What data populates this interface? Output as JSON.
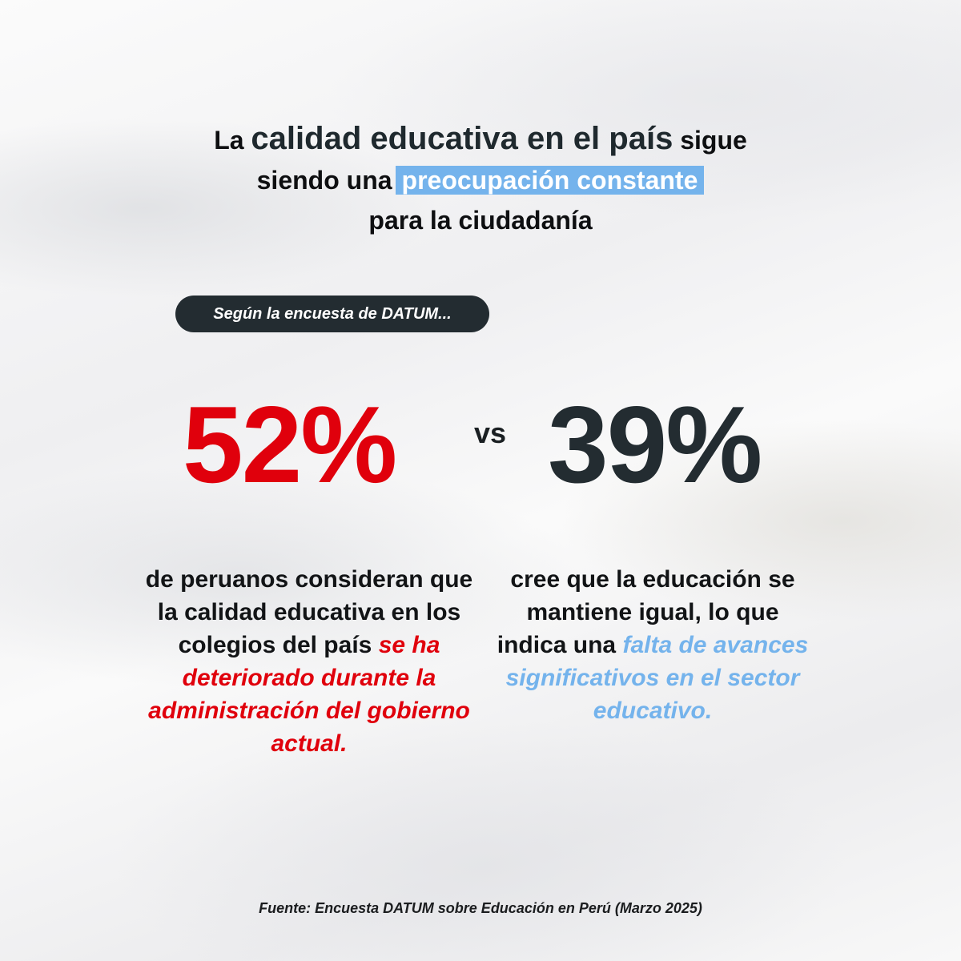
{
  "headline": {
    "part1": "La",
    "part2": "calidad educativa en el país",
    "part3": "sigue",
    "part4": "siendo una",
    "highlight": "preocupación constante",
    "part5": "para la ciudadanía"
  },
  "intro_pill": "Según la encuesta de DATUM...",
  "stat_left": {
    "value": "52%",
    "text1": "de peruanos consideran que la calidad educativa en los colegios del país",
    "emphasis": "se ha deteriorado durante la administración del gobierno actual."
  },
  "versus": "vs",
  "stat_right": {
    "value": "39%",
    "text1": "cree que la educación se mantiene igual, lo que indica una",
    "emphasis": "falta de avances significativos en el sector educativo",
    "text2": "."
  },
  "source": "Fuente: Encuesta DATUM sobre Educación en Perú (Marzo 2025)",
  "colors": {
    "red": "#e0000c",
    "dark": "#232c31",
    "blue": "#74b3ec"
  }
}
